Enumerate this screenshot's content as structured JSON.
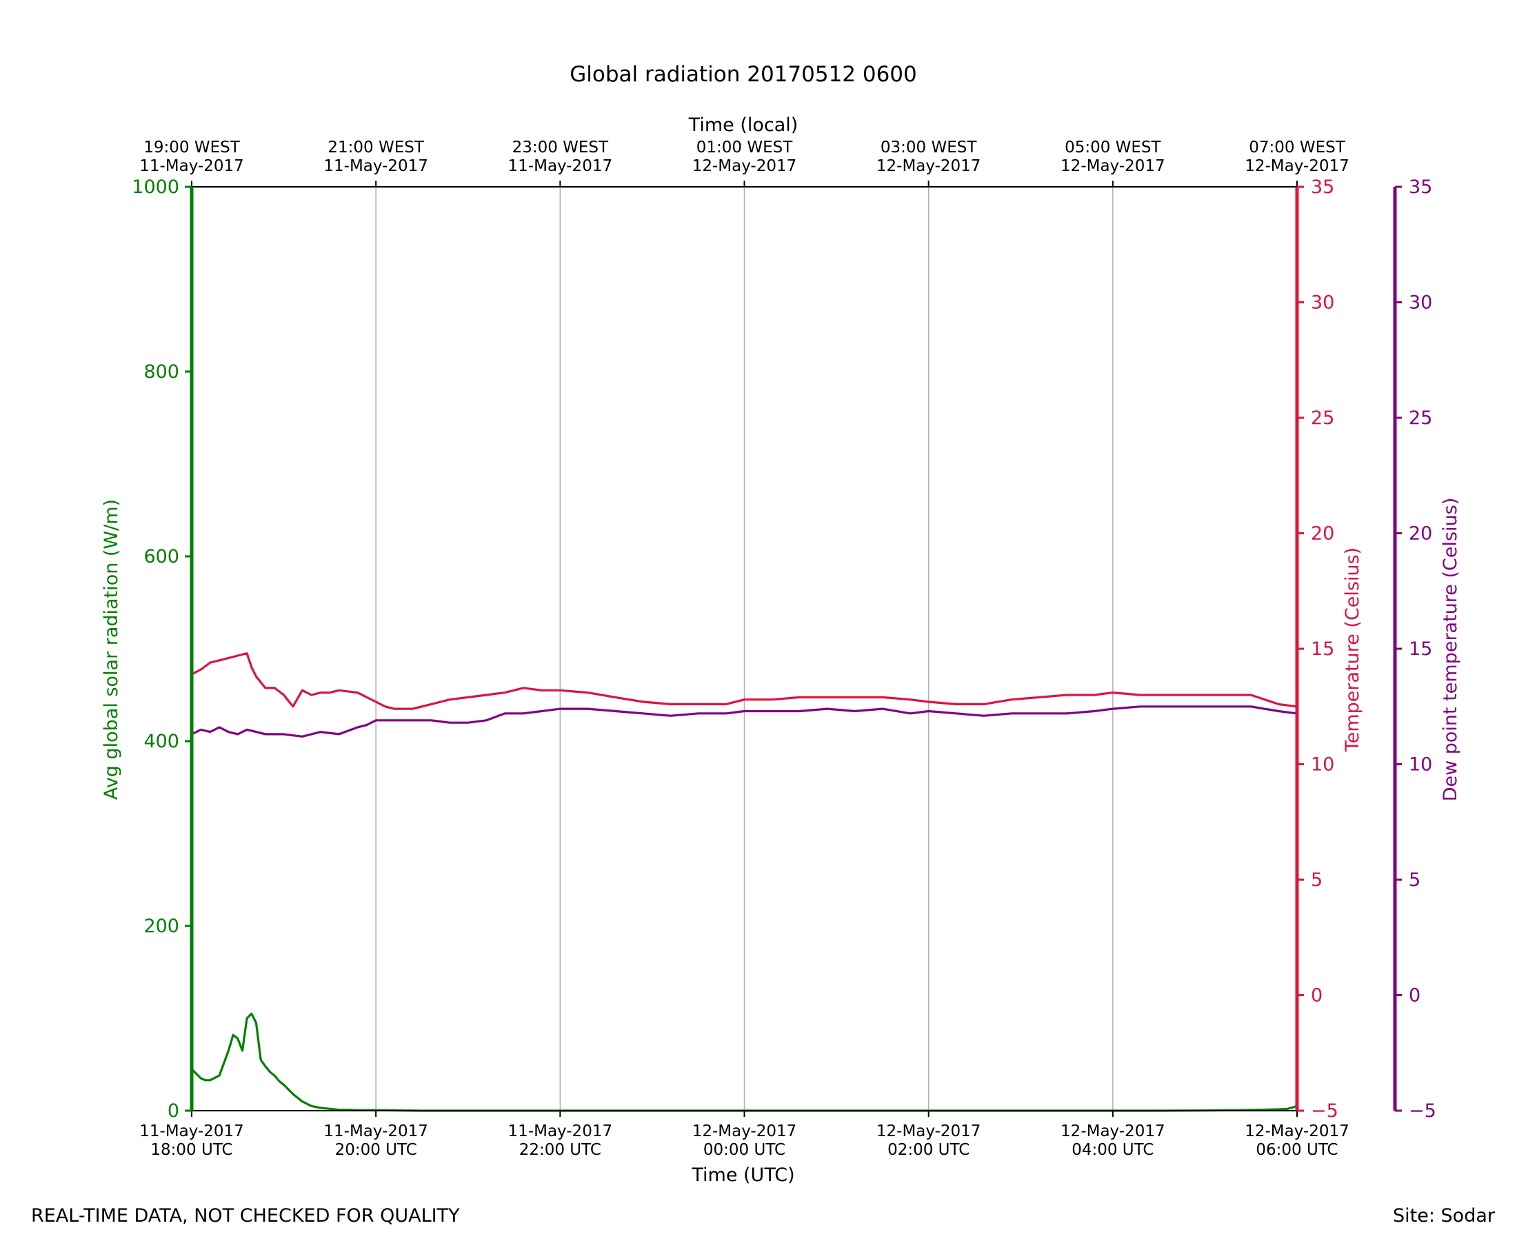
{
  "chart_data": {
    "type": "line",
    "title": "Global radiation 20170512 0600",
    "xlabel": "Time (UTC)",
    "x2label": "Time (local)",
    "ylabel": "Avg global solar radiation (W/m)",
    "y2label": "Temperature (Celsius)",
    "y3label": "Dew point temperature (Celsius)",
    "xlim": [
      0,
      12
    ],
    "ylim": [
      0,
      1000
    ],
    "y2lim": [
      -5,
      35
    ],
    "y3lim": [
      -5,
      35
    ],
    "grid": "vertical",
    "x_ticks": [
      {
        "value": 0,
        "date": "11-May-2017",
        "time": "18:00 UTC"
      },
      {
        "value": 2,
        "date": "11-May-2017",
        "time": "20:00 UTC"
      },
      {
        "value": 4,
        "date": "11-May-2017",
        "time": "22:00 UTC"
      },
      {
        "value": 6,
        "date": "12-May-2017",
        "time": "00:00 UTC"
      },
      {
        "value": 8,
        "date": "12-May-2017",
        "time": "02:00 UTC"
      },
      {
        "value": 10,
        "date": "12-May-2017",
        "time": "04:00 UTC"
      },
      {
        "value": 12,
        "date": "12-May-2017",
        "time": "06:00 UTC"
      }
    ],
    "x2_ticks": [
      {
        "value": 0,
        "time": "19:00 WEST",
        "date": "11-May-2017"
      },
      {
        "value": 2,
        "time": "21:00 WEST",
        "date": "11-May-2017"
      },
      {
        "value": 4,
        "time": "23:00 WEST",
        "date": "11-May-2017"
      },
      {
        "value": 6,
        "time": "01:00 WEST",
        "date": "12-May-2017"
      },
      {
        "value": 8,
        "time": "03:00 WEST",
        "date": "12-May-2017"
      },
      {
        "value": 10,
        "time": "05:00 WEST",
        "date": "12-May-2017"
      },
      {
        "value": 12,
        "time": "07:00 WEST",
        "date": "12-May-2017"
      }
    ],
    "y_ticks": [
      "0",
      "200",
      "400",
      "600",
      "800",
      "1000"
    ],
    "y2_ticks": [
      "−5",
      "0",
      "5",
      "10",
      "15",
      "20",
      "25",
      "30",
      "35"
    ],
    "y3_ticks": [
      "−5",
      "0",
      "5",
      "10",
      "15",
      "20",
      "25",
      "30",
      "35"
    ],
    "colors": {
      "radiation": "#008000",
      "temperature": "#dc143c",
      "dewpoint": "#800080",
      "grid": "#b0b0b0",
      "axis": "#000000"
    },
    "series": [
      {
        "axis": "y",
        "color": "#008000",
        "x": [
          0,
          0.05,
          0.1,
          0.15,
          0.2,
          0.3,
          0.4,
          0.45,
          0.5,
          0.55,
          0.6,
          0.65,
          0.7,
          0.75,
          0.8,
          0.85,
          0.9,
          0.95,
          1.0,
          1.1,
          1.2,
          1.3,
          1.4,
          1.5,
          1.6,
          1.7,
          1.8,
          2.0,
          2.5,
          3,
          4,
          5,
          6,
          7,
          8,
          9,
          10,
          10.5,
          11,
          11.3,
          11.6,
          11.8,
          11.9,
          12.0
        ],
        "values": [
          45,
          40,
          35,
          33,
          33,
          38,
          65,
          82,
          78,
          65,
          100,
          105,
          95,
          55,
          48,
          42,
          38,
          32,
          28,
          18,
          10,
          5,
          3,
          2,
          1,
          1,
          0.5,
          0.5,
          0,
          0,
          0,
          0,
          0,
          0,
          0,
          0,
          0,
          0,
          0.2,
          0.5,
          1,
          1.5,
          2,
          5
        ]
      },
      {
        "axis": "y2",
        "color": "#dc143c",
        "x": [
          0,
          0.1,
          0.2,
          0.3,
          0.4,
          0.5,
          0.6,
          0.65,
          0.7,
          0.8,
          0.9,
          1.0,
          1.1,
          1.2,
          1.3,
          1.4,
          1.5,
          1.6,
          1.8,
          2.0,
          2.1,
          2.2,
          2.4,
          2.6,
          2.8,
          3.0,
          3.2,
          3.4,
          3.6,
          3.8,
          4.0,
          4.3,
          4.6,
          4.9,
          5.2,
          5.5,
          5.8,
          6.0,
          6.3,
          6.6,
          6.9,
          7.2,
          7.5,
          7.8,
          8.0,
          8.3,
          8.6,
          8.9,
          9.2,
          9.5,
          9.8,
          10.0,
          10.3,
          10.6,
          10.9,
          11.2,
          11.5,
          11.8,
          12.0
        ],
        "values": [
          13.9,
          14.1,
          14.4,
          14.5,
          14.6,
          14.7,
          14.8,
          14.2,
          13.8,
          13.3,
          13.3,
          13.0,
          12.5,
          13.2,
          13.0,
          13.1,
          13.1,
          13.2,
          13.1,
          12.7,
          12.5,
          12.4,
          12.4,
          12.6,
          12.8,
          12.9,
          13.0,
          13.1,
          13.3,
          13.2,
          13.2,
          13.1,
          12.9,
          12.7,
          12.6,
          12.6,
          12.6,
          12.8,
          12.8,
          12.9,
          12.9,
          12.9,
          12.9,
          12.8,
          12.7,
          12.6,
          12.6,
          12.8,
          12.9,
          13.0,
          13.0,
          13.1,
          13.0,
          13.0,
          13.0,
          13.0,
          13.0,
          12.6,
          12.5
        ]
      },
      {
        "axis": "y3",
        "color": "#800080",
        "x": [
          0,
          0.1,
          0.2,
          0.3,
          0.4,
          0.5,
          0.6,
          0.7,
          0.8,
          1.0,
          1.2,
          1.4,
          1.6,
          1.8,
          1.9,
          2.0,
          2.2,
          2.4,
          2.6,
          2.8,
          3.0,
          3.2,
          3.4,
          3.6,
          3.8,
          4.0,
          4.3,
          4.6,
          4.9,
          5.2,
          5.5,
          5.8,
          6.0,
          6.3,
          6.6,
          6.9,
          7.2,
          7.5,
          7.8,
          8.0,
          8.3,
          8.6,
          8.9,
          9.2,
          9.5,
          9.8,
          10.0,
          10.3,
          10.6,
          10.9,
          11.2,
          11.5,
          11.8,
          12.0
        ],
        "values": [
          11.3,
          11.5,
          11.4,
          11.6,
          11.4,
          11.3,
          11.5,
          11.4,
          11.3,
          11.3,
          11.2,
          11.4,
          11.3,
          11.6,
          11.7,
          11.9,
          11.9,
          11.9,
          11.9,
          11.8,
          11.8,
          11.9,
          12.2,
          12.2,
          12.3,
          12.4,
          12.4,
          12.3,
          12.2,
          12.1,
          12.2,
          12.2,
          12.3,
          12.3,
          12.3,
          12.4,
          12.3,
          12.4,
          12.2,
          12.3,
          12.2,
          12.1,
          12.2,
          12.2,
          12.2,
          12.3,
          12.4,
          12.5,
          12.5,
          12.5,
          12.5,
          12.5,
          12.3,
          12.2
        ]
      }
    ]
  },
  "footer": {
    "disclaimer": "REAL-TIME DATA, NOT CHECKED FOR QUALITY",
    "site": "Site: Sodar"
  }
}
